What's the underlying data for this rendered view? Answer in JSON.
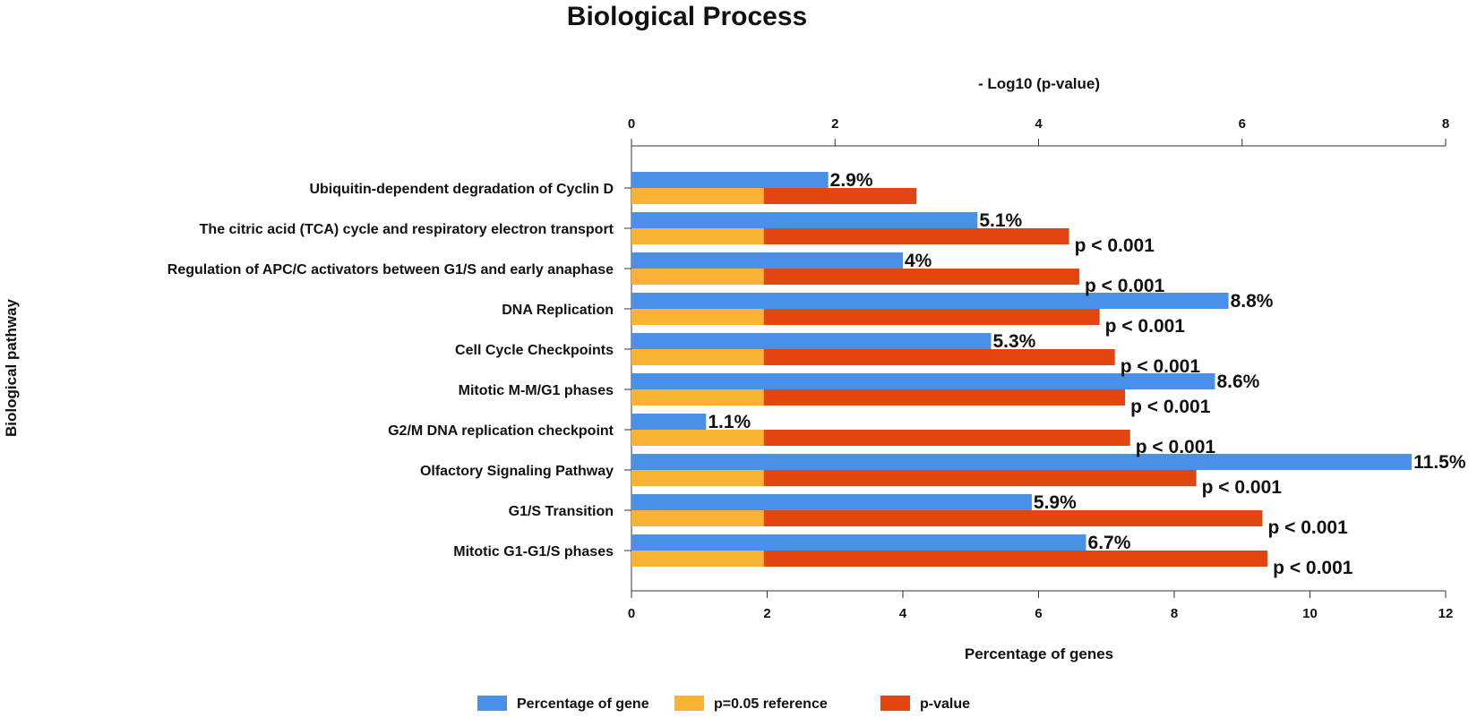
{
  "chart_data": {
    "type": "bar",
    "orientation": "horizontal",
    "title": "Biological Process",
    "top_axis_label": "- Log10 (p-value)",
    "bottom_axis_label": "Percentage of genes",
    "y_axis_label": "Biological pathway",
    "top_xlim": [
      0,
      8
    ],
    "top_ticks": [
      "0",
      "2",
      "4",
      "6",
      "8"
    ],
    "bottom_xlim": [
      0,
      12
    ],
    "bottom_ticks": [
      "0",
      "2",
      "4",
      "6",
      "8",
      "10",
      "12"
    ],
    "categories": [
      "Ubiquitin-dependent degradation of Cyclin D",
      "The citric acid (TCA) cycle and respiratory electron transport",
      "Regulation of APC/C activators between G1/S and early anaphase",
      "DNA Replication",
      "Cell Cycle Checkpoints",
      "Mitotic M-M/G1 phases",
      "G2/M DNA replication checkpoint",
      "Olfactory Signaling Pathway",
      "G1/S Transition",
      "Mitotic G1-G1/S phases"
    ],
    "series": [
      {
        "name": "Percentage of gene",
        "axis": "bottom",
        "color": "#4A90E8",
        "values": [
          2.9,
          5.1,
          4.0,
          8.8,
          5.3,
          8.6,
          1.1,
          11.5,
          5.9,
          6.7
        ],
        "labels": [
          "2.9%",
          "5.1%",
          "4%",
          "8.8%",
          "5.3%",
          "8.6%",
          "1.1%",
          "11.5%",
          "5.9%",
          "6.7%"
        ]
      },
      {
        "name": "p=0.05 reference",
        "axis": "top",
        "color": "#F9B233",
        "values": [
          1.301,
          1.301,
          1.301,
          1.301,
          1.301,
          1.301,
          1.301,
          1.301,
          1.301,
          1.301
        ]
      },
      {
        "name": "p-value",
        "axis": "top",
        "color": "#E2450F",
        "values": [
          2.8,
          4.3,
          4.4,
          4.6,
          4.75,
          4.85,
          4.9,
          5.55,
          6.2,
          6.25
        ],
        "labels": [
          "",
          "p < 0.001",
          "p < 0.001",
          "p < 0.001",
          "p < 0.001",
          "p < 0.001",
          "p < 0.001",
          "p < 0.001",
          "p < 0.001",
          "p < 0.001"
        ]
      }
    ],
    "legend_position": "bottom-center"
  }
}
